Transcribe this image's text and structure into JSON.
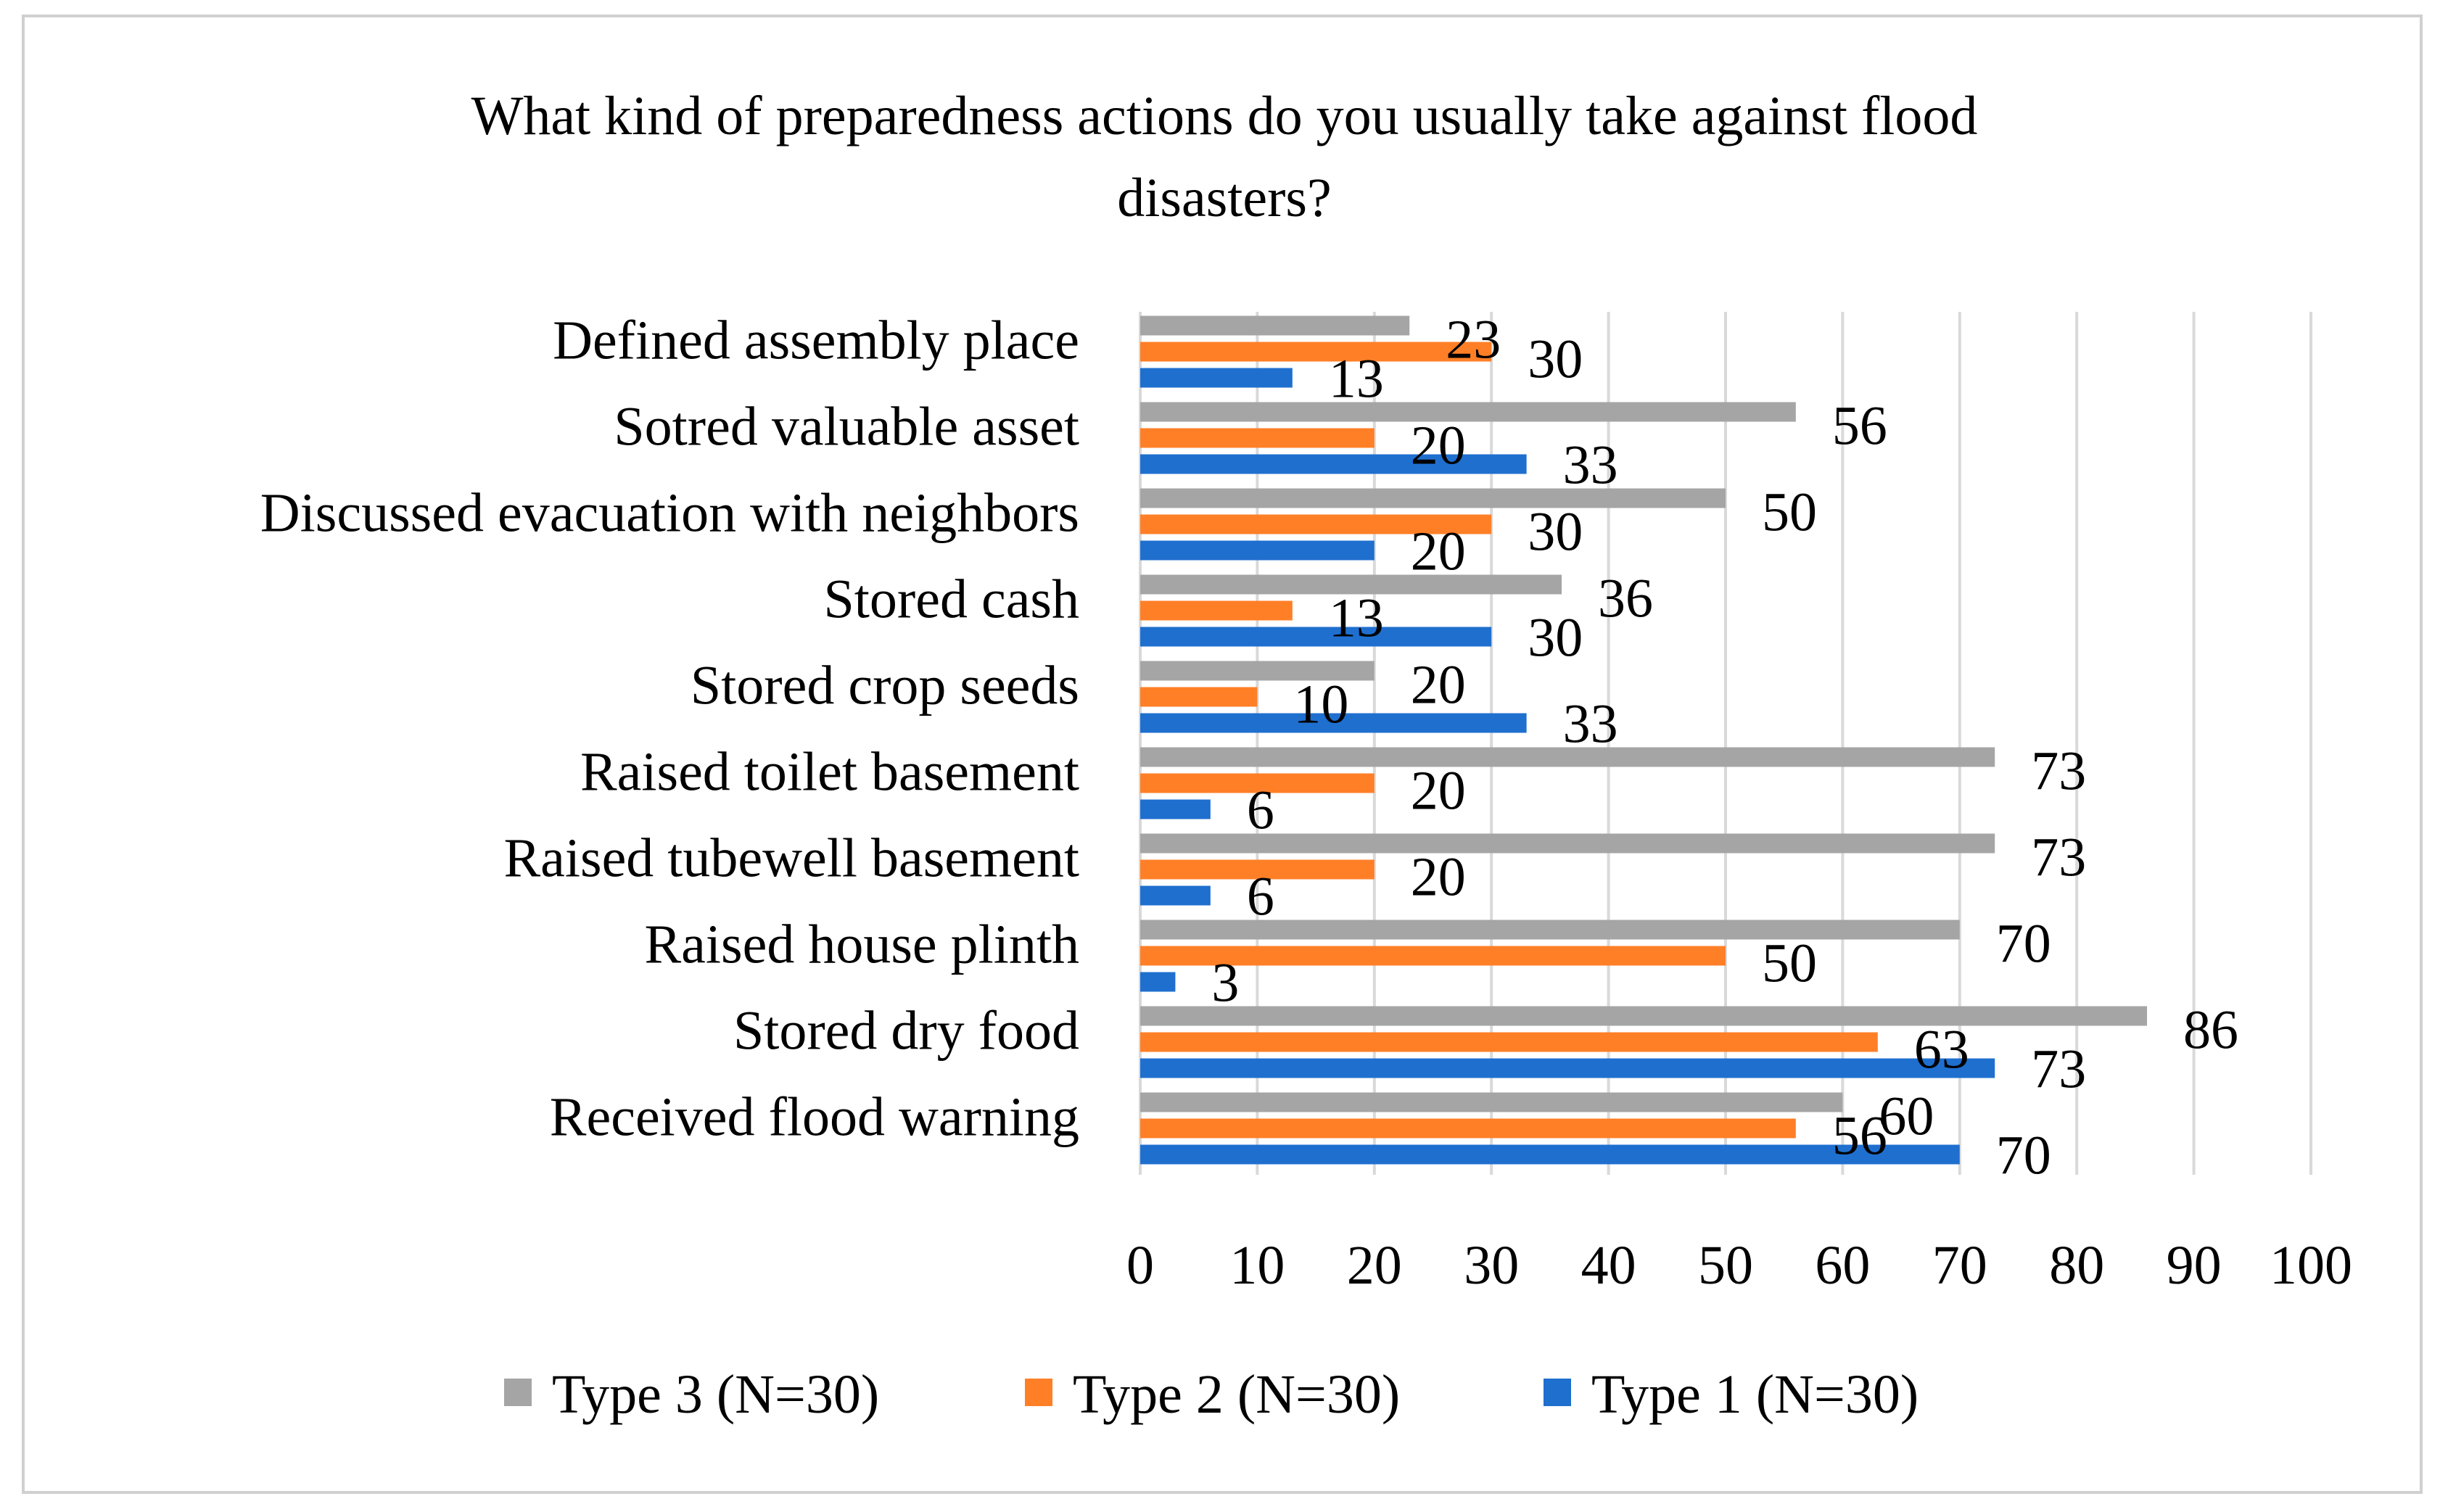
{
  "chart_data": {
    "type": "bar",
    "orientation": "horizontal",
    "title": "What kind of preparedness actions do you usually take against flood disasters?",
    "title_lines": [
      "What kind of preparedness actions do you usually take against flood",
      "disasters?"
    ],
    "categories": [
      "Received flood warning",
      "Stored dry food",
      "Raised house plinth",
      "Raised tubewell basement",
      "Raised toilet basement",
      "Stored crop seeds",
      "Stored cash",
      "Discussed evacuation with neighbors",
      "Sotred valuable asset",
      "Defined assembly place"
    ],
    "series": [
      {
        "name": "Type 1 (N=30)",
        "color": "#1f6fcf",
        "values": [
          70,
          73,
          3,
          6,
          6,
          33,
          30,
          20,
          33,
          13
        ]
      },
      {
        "name": "Type 2 (N=30)",
        "color": "#ff7f27",
        "values": [
          56,
          63,
          50,
          20,
          20,
          10,
          13,
          30,
          20,
          30
        ]
      },
      {
        "name": "Type 3 (N=30)",
        "color": "#a5a5a5",
        "values": [
          60,
          86,
          70,
          73,
          73,
          20,
          36,
          50,
          56,
          23
        ]
      }
    ],
    "legend_order": [
      "Type 3 (N=30)",
      "Type 2 (N=30)",
      "Type 1 (N=30)"
    ],
    "xlim": [
      0,
      100
    ],
    "xticks": [
      0,
      10,
      20,
      30,
      40,
      50,
      60,
      70,
      80,
      90,
      100
    ],
    "xlabel": "",
    "ylabel": "",
    "grid": "vertical",
    "legend_position": "bottom"
  }
}
